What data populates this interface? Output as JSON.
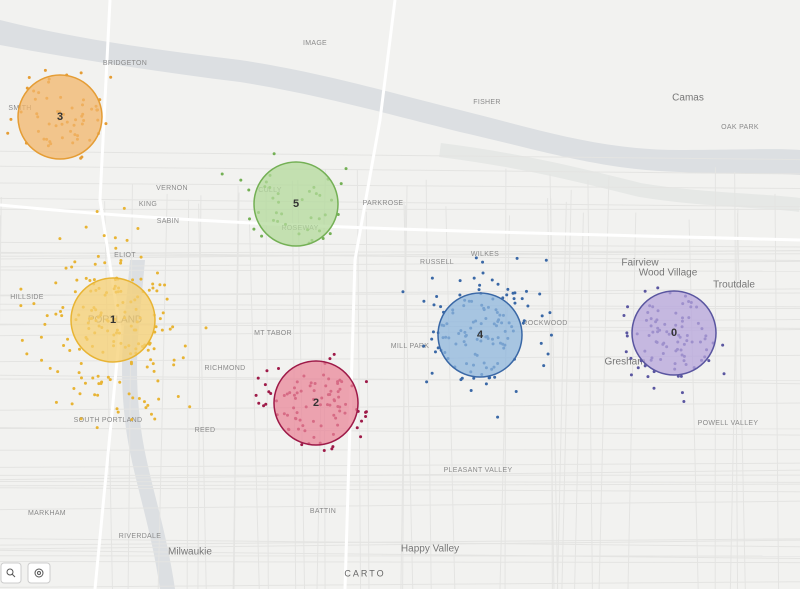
{
  "map": {
    "place_labels": [
      "BRIDGETON",
      "SMITH",
      "IMAGE",
      "FISHER",
      "Camas",
      "OAK PARK",
      "VERNON",
      "KING",
      "SABIN",
      "CULLY",
      "ROSEWAY",
      "PARKROSE",
      "ELIOT",
      "RUSSELL",
      "WILKES",
      "Fairview",
      "Wood Village",
      "Troutdale",
      "HILLSIDE",
      "PORTLAND",
      "MT TABOR",
      "ROCKWOOD",
      "RICHMOND",
      "MILL PARK",
      "Gresham",
      "SOUTH PORTLAND",
      "REED",
      "POWELL VALLEY",
      "PLEASANT VALLEY",
      "MARKHAM",
      "BATTIN",
      "RIVERDALE",
      "Milwaukie",
      "Happy Valley"
    ],
    "clusters": [
      {
        "label": "3",
        "color": "#f2b56b",
        "point_color": "#e59d35"
      },
      {
        "label": "5",
        "color": "#b3d99b",
        "point_color": "#74b055"
      },
      {
        "label": "1",
        "color": "#f5cf72",
        "point_color": "#e8b434"
      },
      {
        "label": "2",
        "color": "#e98799",
        "point_color": "#9e1a48"
      },
      {
        "label": "4",
        "color": "#8db5dc",
        "point_color": "#3a68a6"
      },
      {
        "label": "0",
        "color": "#b6a4db",
        "point_color": "#5a56a0"
      }
    ],
    "attribution": "CARTO"
  }
}
